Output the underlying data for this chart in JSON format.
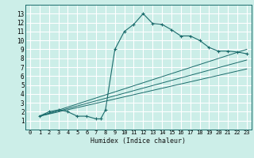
{
  "title": "",
  "xlabel": "Humidex (Indice chaleur)",
  "ylabel": "",
  "bg_color": "#cceee8",
  "grid_color": "#ffffff",
  "line_color": "#1a6b6b",
  "xlim": [
    -0.5,
    23.5
  ],
  "ylim": [
    0,
    14
  ],
  "xticks": [
    0,
    1,
    2,
    3,
    4,
    5,
    6,
    7,
    8,
    9,
    10,
    11,
    12,
    13,
    14,
    15,
    16,
    17,
    18,
    19,
    20,
    21,
    22,
    23
  ],
  "yticks": [
    1,
    2,
    3,
    4,
    5,
    6,
    7,
    8,
    9,
    10,
    11,
    12,
    13
  ],
  "line1_x": [
    1,
    2,
    3,
    4,
    5,
    6,
    7,
    7.5,
    8,
    9,
    10,
    11,
    12,
    13,
    14,
    15,
    16,
    17,
    18,
    19,
    20,
    21,
    22,
    23
  ],
  "line1_y": [
    1.5,
    2.0,
    2.2,
    2.0,
    1.5,
    1.5,
    1.2,
    1.2,
    2.2,
    9.0,
    11.0,
    11.8,
    13.0,
    11.9,
    11.8,
    11.2,
    10.5,
    10.5,
    10.0,
    9.2,
    8.8,
    8.8,
    8.7,
    8.5
  ],
  "line2_x": [
    1,
    23
  ],
  "line2_y": [
    1.5,
    9.0
  ],
  "line3_x": [
    1,
    23
  ],
  "line3_y": [
    1.5,
    7.8
  ],
  "line4_x": [
    1,
    23
  ],
  "line4_y": [
    1.5,
    6.8
  ]
}
